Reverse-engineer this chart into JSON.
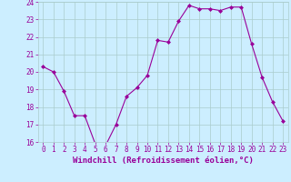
{
  "x": [
    0,
    1,
    2,
    3,
    4,
    5,
    6,
    7,
    8,
    9,
    10,
    11,
    12,
    13,
    14,
    15,
    16,
    17,
    18,
    19,
    20,
    21,
    22,
    23
  ],
  "y": [
    20.3,
    20.0,
    18.9,
    17.5,
    17.5,
    15.9,
    15.8,
    17.0,
    18.6,
    19.1,
    19.8,
    21.8,
    21.7,
    22.9,
    23.8,
    23.6,
    23.6,
    23.5,
    23.7,
    23.7,
    21.6,
    19.7,
    18.3,
    17.2
  ],
  "line_color": "#990099",
  "marker": "D",
  "marker_size": 2,
  "bg_color": "#cceeff",
  "grid_color": "#aacccc",
  "xlabel": "Windchill (Refroidissement éolien,°C)",
  "ylabel": "",
  "ylim": [
    16,
    24
  ],
  "xlim": [
    -0.5,
    23.5
  ],
  "yticks": [
    16,
    17,
    18,
    19,
    20,
    21,
    22,
    23,
    24
  ],
  "xticks": [
    0,
    1,
    2,
    3,
    4,
    5,
    6,
    7,
    8,
    9,
    10,
    11,
    12,
    13,
    14,
    15,
    16,
    17,
    18,
    19,
    20,
    21,
    22,
    23
  ],
  "tick_color": "#990099",
  "tick_fontsize": 5.5,
  "xlabel_fontsize": 6.5
}
